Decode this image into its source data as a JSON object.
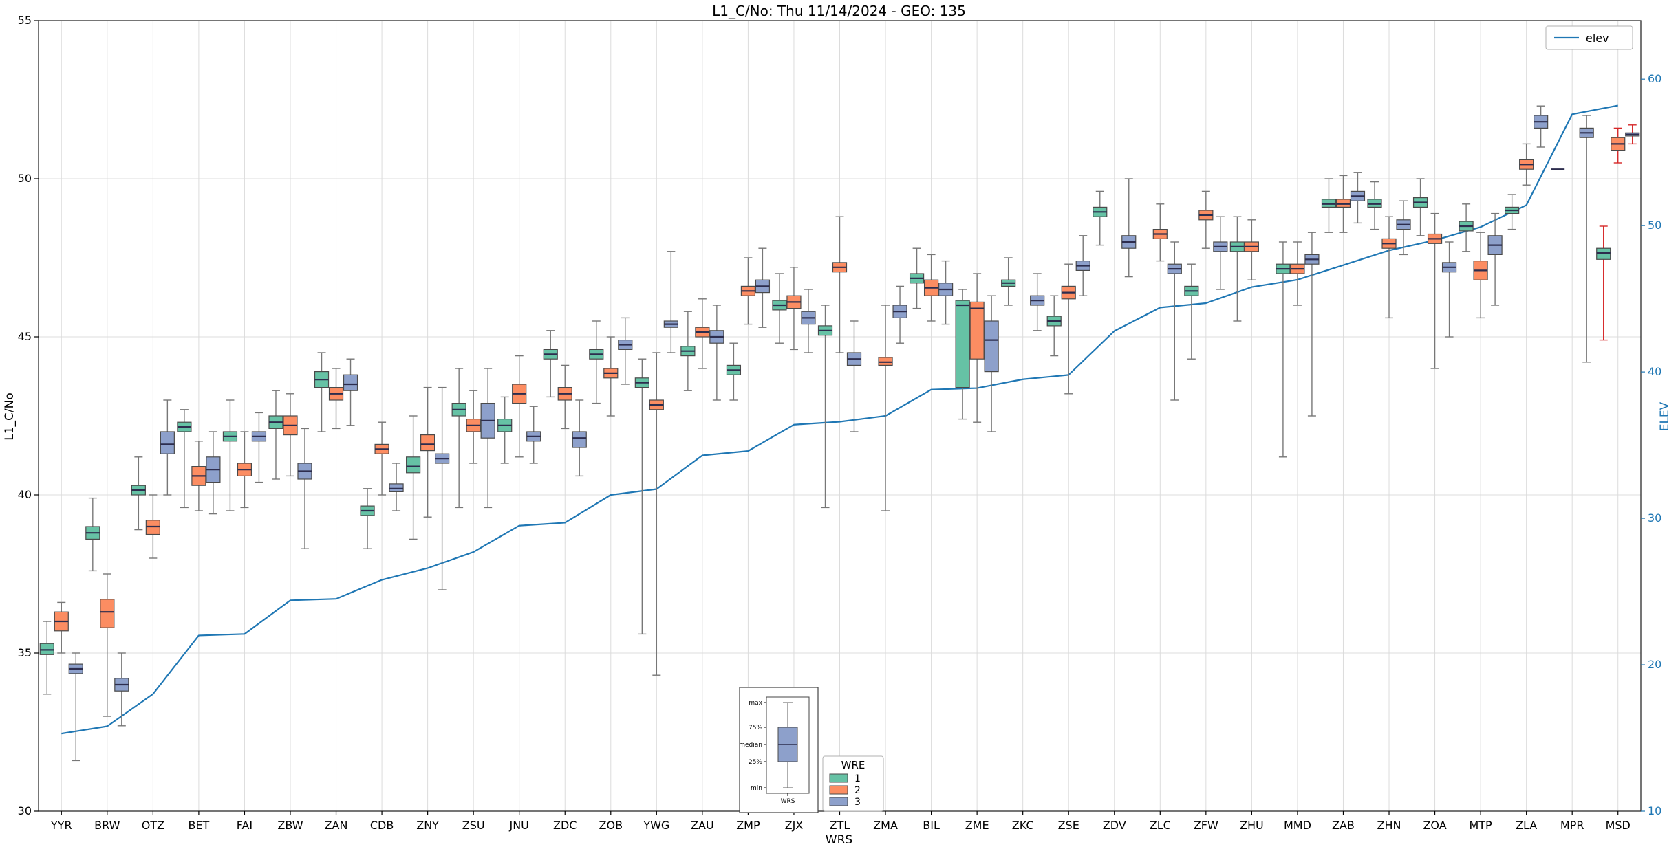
{
  "chart_data": {
    "type": "boxplot+line",
    "title": "L1_C/No: Thu 11/14/2024 - GEO: 135",
    "xlabel": "WRS",
    "ylabel_left": "L1_C/No",
    "ylabel_right": "ELEV",
    "ylim_left": [
      30,
      55
    ],
    "yticks_left": [
      30,
      35,
      40,
      45,
      50,
      55
    ],
    "ylim_right": [
      10,
      64
    ],
    "yticks_right": [
      10,
      20,
      30,
      40,
      50,
      60
    ],
    "grid": true,
    "legend": {
      "title": "WRE",
      "entries": [
        {
          "label": "1",
          "color": "#66c2a5"
        },
        {
          "label": "2",
          "color": "#fc8d62"
        },
        {
          "label": "3",
          "color": "#8da0cb"
        }
      ]
    },
    "line_legend": {
      "label": "elev",
      "color": "#1f77b4"
    },
    "inset": {
      "labels": [
        "max",
        "75%",
        "median",
        "25%",
        "min"
      ],
      "xlabel": "WRS",
      "box_color": "#8da0cb"
    },
    "colors": {
      "line": "#1f77b4",
      "grid": "#dcdcdc",
      "frame": "#2b2b2b",
      "box_edge": "#4a4a4a",
      "median": "#2d2d4e",
      "whisker": "#777777",
      "red_whisker": "#d62728",
      "right_axis_text": "#1f77b4"
    },
    "categories": [
      "YYR",
      "BRW",
      "OTZ",
      "BET",
      "FAI",
      "ZBW",
      "ZAN",
      "CDB",
      "ZNY",
      "ZSU",
      "JNU",
      "ZDC",
      "ZOB",
      "YWG",
      "ZAU",
      "ZMP",
      "ZJX",
      "ZTL",
      "ZMA",
      "BIL",
      "ZME",
      "ZKC",
      "ZSE",
      "ZDV",
      "ZLC",
      "ZFW",
      "ZHU",
      "MMD",
      "ZAB",
      "ZHN",
      "ZOA",
      "MTP",
      "ZLA",
      "MPR",
      "MSD"
    ],
    "elev": [
      15.3,
      15.8,
      18.0,
      22.0,
      22.1,
      24.4,
      24.5,
      25.8,
      26.6,
      27.7,
      29.5,
      29.7,
      31.6,
      32.0,
      34.3,
      34.6,
      36.4,
      36.6,
      37.0,
      38.8,
      38.9,
      39.5,
      39.8,
      42.8,
      44.4,
      44.7,
      45.8,
      46.3,
      47.3,
      48.3,
      49.0,
      49.9,
      51.4,
      57.6,
      58.2
    ],
    "series": [
      {
        "name": "1",
        "color": "#66c2a5",
        "boxes": [
          [
            33.7,
            34.95,
            35.1,
            35.3,
            36.0
          ],
          [
            37.6,
            38.6,
            38.8,
            39.0,
            39.9
          ],
          [
            38.9,
            40.0,
            40.15,
            40.3,
            41.2
          ],
          [
            39.6,
            42.0,
            42.15,
            42.3,
            42.7
          ],
          [
            39.5,
            41.7,
            41.85,
            42.0,
            43.0
          ],
          [
            40.5,
            42.1,
            42.3,
            42.5,
            43.3
          ],
          [
            42.0,
            43.4,
            43.65,
            43.9,
            44.5
          ],
          [
            38.3,
            39.35,
            39.5,
            39.65,
            40.2
          ],
          [
            38.6,
            40.7,
            40.9,
            41.2,
            42.5
          ],
          [
            39.6,
            42.5,
            42.7,
            42.9,
            44.0
          ],
          [
            41.0,
            42.0,
            42.2,
            42.4,
            43.1
          ],
          [
            43.1,
            44.3,
            44.45,
            44.6,
            45.2
          ],
          [
            42.9,
            44.3,
            44.45,
            44.6,
            45.5
          ],
          [
            35.6,
            43.4,
            43.55,
            43.7,
            44.3
          ],
          [
            43.3,
            44.4,
            44.55,
            44.7,
            45.8
          ],
          [
            43.0,
            43.8,
            43.95,
            44.1,
            44.8
          ],
          [
            44.8,
            45.85,
            46.0,
            46.15,
            47.0
          ],
          [
            39.6,
            45.05,
            45.2,
            45.35,
            46.0
          ],
          null,
          [
            45.9,
            46.7,
            46.85,
            47.0,
            47.8
          ],
          [
            42.4,
            43.4,
            46.0,
            46.15,
            46.5
          ],
          [
            46.0,
            46.6,
            46.7,
            46.8,
            47.5
          ],
          [
            44.4,
            45.35,
            45.5,
            45.65,
            46.3
          ],
          [
            47.9,
            48.8,
            48.95,
            49.1,
            49.6
          ],
          null,
          [
            44.3,
            46.3,
            46.45,
            46.6,
            47.3
          ],
          [
            45.5,
            47.7,
            47.85,
            48.0,
            48.8
          ],
          [
            41.2,
            47.0,
            47.15,
            47.3,
            48.0
          ],
          [
            48.3,
            49.1,
            49.2,
            49.35,
            50.0
          ],
          [
            48.4,
            49.1,
            49.2,
            49.35,
            49.9
          ],
          [
            48.2,
            49.1,
            49.25,
            49.4,
            50.0
          ],
          [
            47.7,
            48.35,
            48.5,
            48.65,
            49.2
          ],
          [
            48.4,
            48.9,
            49.0,
            49.1,
            49.5
          ],
          [
            50.3,
            50.3,
            50.3,
            50.3,
            50.3
          ],
          [
            44.9,
            47.45,
            47.65,
            47.8,
            48.5,
            1
          ]
        ]
      },
      {
        "name": "2",
        "color": "#fc8d62",
        "boxes": [
          [
            35.0,
            35.7,
            36.0,
            36.3,
            36.6
          ],
          [
            33.0,
            35.8,
            36.3,
            36.7,
            37.5
          ],
          [
            38.0,
            38.75,
            39.0,
            39.2,
            40.0
          ],
          [
            39.5,
            40.3,
            40.6,
            40.9,
            41.7
          ],
          [
            39.6,
            40.6,
            40.8,
            41.0,
            42.0
          ],
          [
            40.6,
            41.9,
            42.2,
            42.5,
            43.2
          ],
          [
            42.1,
            43.0,
            43.2,
            43.4,
            44.0
          ],
          [
            40.0,
            41.3,
            41.45,
            41.6,
            42.3
          ],
          [
            39.3,
            41.4,
            41.6,
            41.9,
            43.4
          ],
          [
            41.0,
            42.0,
            42.2,
            42.4,
            43.3
          ],
          [
            41.2,
            42.9,
            43.2,
            43.5,
            44.4
          ],
          [
            42.1,
            43.0,
            43.2,
            43.4,
            44.1
          ],
          [
            42.5,
            43.7,
            43.85,
            44.0,
            45.0
          ],
          [
            34.3,
            42.7,
            42.85,
            43.0,
            44.5
          ],
          [
            44.0,
            45.0,
            45.15,
            45.3,
            46.2
          ],
          [
            45.4,
            46.3,
            46.45,
            46.6,
            47.5
          ],
          [
            44.6,
            45.9,
            46.1,
            46.3,
            47.2
          ],
          [
            44.5,
            47.05,
            47.2,
            47.35,
            48.8
          ],
          [
            39.5,
            44.1,
            44.2,
            44.35,
            46.0
          ],
          [
            45.5,
            46.3,
            46.55,
            46.8,
            47.6
          ],
          [
            42.3,
            44.3,
            45.9,
            46.1,
            47.0
          ],
          null,
          [
            43.2,
            46.2,
            46.4,
            46.6,
            47.3
          ],
          null,
          [
            47.4,
            48.1,
            48.25,
            48.4,
            49.2
          ],
          [
            47.8,
            48.7,
            48.85,
            49.0,
            49.6
          ],
          [
            46.8,
            47.7,
            47.85,
            48.0,
            48.7
          ],
          [
            46.0,
            47.0,
            47.15,
            47.3,
            48.0
          ],
          [
            48.3,
            49.1,
            49.2,
            49.35,
            50.1
          ],
          [
            45.6,
            47.8,
            47.95,
            48.1,
            48.8
          ],
          [
            44.0,
            47.95,
            48.1,
            48.25,
            48.9
          ],
          [
            45.6,
            46.8,
            47.1,
            47.4,
            48.3
          ],
          [
            49.8,
            50.3,
            50.45,
            50.6,
            51.1
          ],
          null,
          [
            50.5,
            50.9,
            51.1,
            51.3,
            51.6,
            1
          ]
        ]
      },
      {
        "name": "3",
        "color": "#8da0cb",
        "boxes": [
          [
            31.6,
            34.35,
            34.5,
            34.65,
            35.0
          ],
          [
            32.7,
            33.8,
            34.0,
            34.2,
            35.0
          ],
          [
            40.0,
            41.3,
            41.6,
            42.0,
            43.0
          ],
          [
            39.4,
            40.4,
            40.8,
            41.2,
            42.0
          ],
          [
            40.4,
            41.7,
            41.85,
            42.0,
            42.6
          ],
          [
            38.3,
            40.5,
            40.75,
            41.0,
            42.1
          ],
          [
            42.2,
            43.3,
            43.5,
            43.8,
            44.3
          ],
          [
            39.5,
            40.1,
            40.2,
            40.35,
            41.0
          ],
          [
            37.0,
            41.0,
            41.15,
            41.3,
            43.4
          ],
          [
            39.6,
            41.8,
            42.35,
            42.9,
            44.0
          ],
          [
            41.0,
            41.7,
            41.85,
            42.0,
            42.8
          ],
          [
            40.6,
            41.5,
            41.8,
            42.0,
            43.0
          ],
          [
            43.5,
            44.6,
            44.75,
            44.9,
            45.6
          ],
          [
            44.5,
            45.3,
            45.4,
            45.5,
            47.7
          ],
          [
            43.0,
            44.8,
            45.0,
            45.2,
            46.0
          ],
          [
            45.3,
            46.4,
            46.6,
            46.8,
            47.8
          ],
          [
            44.5,
            45.4,
            45.6,
            45.8,
            46.5
          ],
          [
            42.0,
            44.1,
            44.3,
            44.5,
            45.5
          ],
          [
            44.8,
            45.6,
            45.8,
            46.0,
            46.6
          ],
          [
            45.4,
            46.3,
            46.5,
            46.7,
            47.4
          ],
          [
            42.0,
            43.9,
            44.9,
            45.5,
            46.3
          ],
          [
            45.2,
            46.0,
            46.15,
            46.3,
            47.0
          ],
          [
            46.3,
            47.1,
            47.25,
            47.4,
            48.2
          ],
          [
            46.9,
            47.8,
            48.0,
            48.2,
            50.0
          ],
          [
            43.0,
            47.0,
            47.15,
            47.3,
            48.0
          ],
          [
            46.5,
            47.7,
            47.85,
            48.0,
            48.8
          ],
          null,
          [
            42.5,
            47.3,
            47.45,
            47.6,
            48.3
          ],
          [
            48.6,
            49.3,
            49.45,
            49.6,
            50.2
          ],
          [
            47.6,
            48.4,
            48.55,
            48.7,
            49.3
          ],
          [
            45.0,
            47.05,
            47.2,
            47.35,
            48.0
          ],
          [
            46.0,
            47.6,
            47.9,
            48.2,
            48.9
          ],
          [
            51.0,
            51.6,
            51.8,
            52.0,
            52.3
          ],
          [
            44.2,
            51.3,
            51.45,
            51.6,
            52.0
          ],
          [
            51.1,
            51.35,
            51.4,
            51.45,
            51.7,
            1
          ]
        ]
      }
    ]
  }
}
